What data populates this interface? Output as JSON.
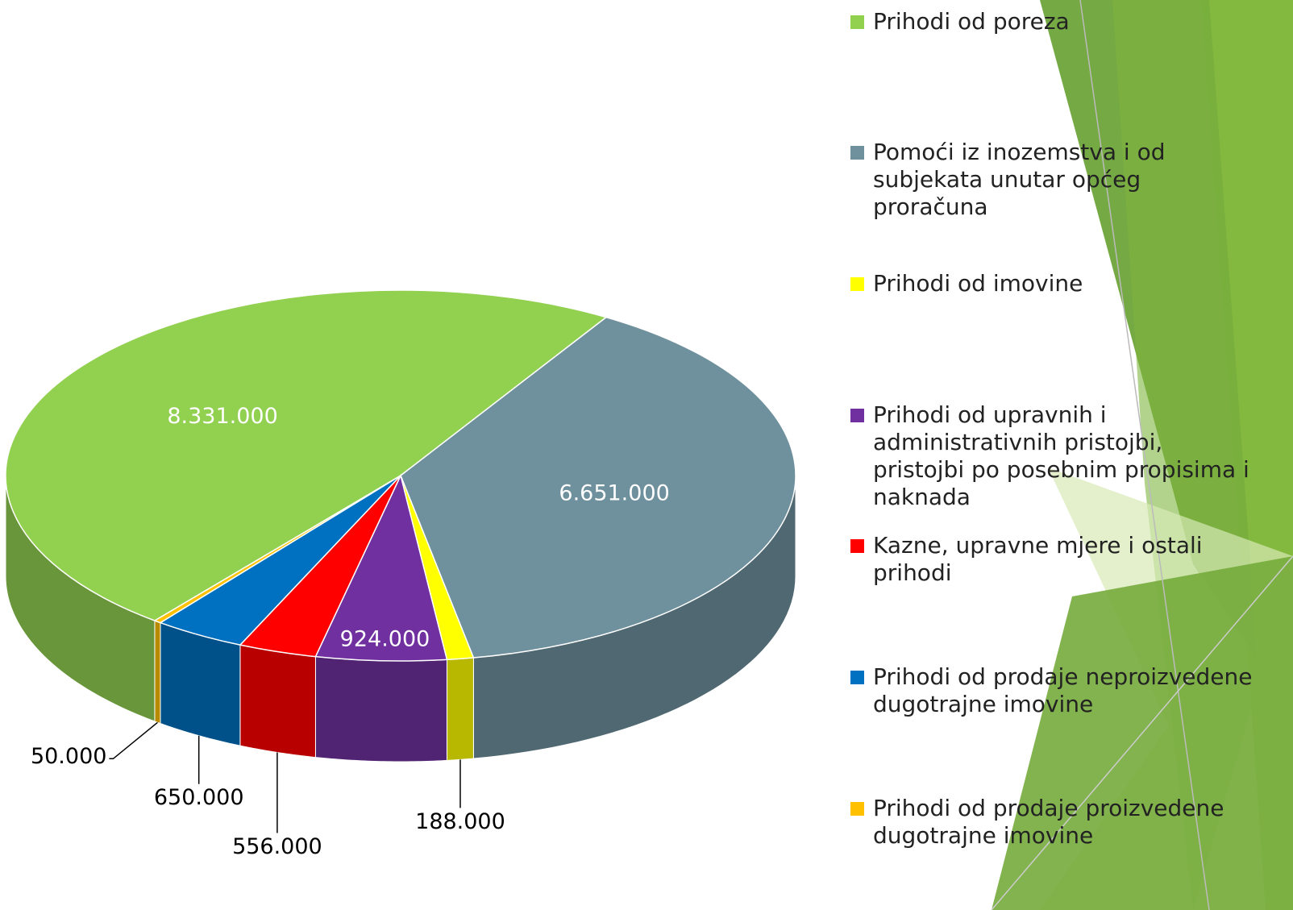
{
  "chart_data": {
    "type": "pie3d",
    "categories": [
      "Prihodi od poreza",
      "Pomoći iz inozemstva i od subjekata unutar općeg proračuna",
      "Prihodi od imovine",
      "Prihodi od upravnih i administrativnih pristojbi, pristojbi po posebnim propisima i naknada",
      "Kazne, upravne mjere i ostali prihodi",
      "Prihodi od prodaje neproizvedene dugotrajne imovine",
      "Prihodi od prodaje proizvedene dugotrajne imovine"
    ],
    "values": [
      8331000,
      6651000,
      188000,
      924000,
      556000,
      650000,
      50000
    ],
    "value_labels": [
      "8.331.000",
      "6.651.000",
      "188.000",
      "924.000",
      "556.000",
      "650.000",
      "50.000"
    ],
    "colors": [
      "#92d050",
      "#6f909d",
      "#ffff00",
      "#7030a0",
      "#ff0000",
      "#0070c0",
      "#ffc000"
    ],
    "legend": "right"
  }
}
